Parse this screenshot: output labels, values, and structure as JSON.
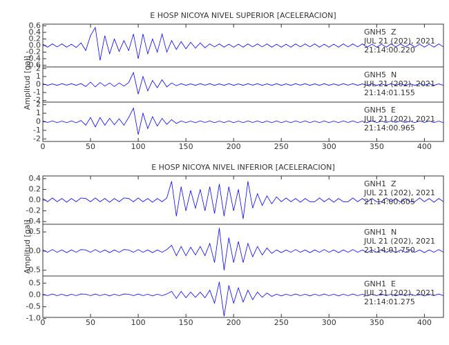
{
  "chart_data": [
    {
      "type": "line",
      "title": "E HOSP NICOYA NIVEL SUPERIOR [ACELERACION]",
      "ylabel": "Amplitud [gal]",
      "xlim": [
        0,
        420
      ],
      "xticks": [
        0,
        50,
        100,
        150,
        200,
        250,
        300,
        350,
        400
      ],
      "x": [
        0,
        5,
        10,
        15,
        20,
        25,
        30,
        35,
        40,
        45,
        50,
        55,
        60,
        65,
        70,
        75,
        80,
        85,
        90,
        95,
        100,
        105,
        110,
        115,
        120,
        125,
        130,
        135,
        140,
        145,
        150,
        155,
        160,
        165,
        170,
        175,
        180,
        185,
        190,
        195,
        200,
        205,
        210,
        215,
        220,
        225,
        230,
        235,
        240,
        245,
        250,
        255,
        260,
        265,
        270,
        275,
        280,
        285,
        290,
        295,
        300,
        305,
        310,
        315,
        320,
        325,
        330,
        335,
        340,
        345,
        350,
        355,
        360,
        365,
        370,
        375,
        380,
        385,
        390,
        395,
        400,
        405,
        410,
        415,
        420
      ],
      "series": [
        {
          "name": "GNH5  Z",
          "date": "JUL 21 (202), 2021",
          "time": "21:14:00.220",
          "color": "#0000ff",
          "ylim": [
            -0.65,
            0.65
          ],
          "yticks": [
            0.6,
            0.4,
            0.2,
            {
              "value": 0,
              "label": "0.0"
            },
            -0.2,
            -0.4,
            -0.6
          ],
          "values": [
            0.04,
            -0.05,
            0.05,
            -0.04,
            0.05,
            -0.05,
            0.04,
            -0.06,
            0.08,
            -0.15,
            0.3,
            0.55,
            -0.45,
            0.3,
            -0.25,
            0.2,
            -0.18,
            0.15,
            -0.15,
            0.35,
            -0.4,
            0.35,
            -0.25,
            0.2,
            -0.2,
            0.35,
            -0.2,
            0.15,
            -0.12,
            0.12,
            -0.1,
            0.1,
            -0.08,
            0.08,
            -0.07,
            0.05,
            -0.04,
            0.05,
            -0.05,
            0.04,
            -0.05,
            0.04,
            -0.05,
            0.05,
            -0.04,
            0.05,
            -0.04,
            0.05,
            -0.05,
            0.04,
            -0.05,
            0.04,
            -0.05,
            0.05,
            -0.04,
            0.05,
            -0.04,
            0.05,
            -0.05,
            0.04,
            -0.05,
            0.04,
            -0.05,
            0.05,
            -0.04,
            0.05,
            -0.04,
            0.05,
            -0.05,
            0.04,
            -0.05,
            0.04,
            -0.05,
            0.05,
            -0.04,
            0.05,
            -0.04,
            0.05,
            -0.05,
            0.04,
            -0.05,
            0.04,
            -0.05,
            0.05,
            -0.04
          ]
        },
        {
          "name": "GNH5  N",
          "date": "JUL 21 (202), 2021",
          "time": "21:14:01.155",
          "color": "#0000ff",
          "ylim": [
            -2.2,
            2.2
          ],
          "yticks": [
            2,
            1,
            0,
            -1,
            -2
          ],
          "values": [
            0.1,
            -0.1,
            0.08,
            -0.1,
            0.1,
            -0.08,
            0.1,
            -0.1,
            0.12,
            -0.25,
            0.3,
            -0.3,
            0.25,
            -0.2,
            0.2,
            -0.25,
            0.2,
            -0.2,
            0.25,
            1.5,
            -1.2,
            1.0,
            -0.8,
            0.5,
            -0.4,
            0.6,
            -0.3,
            0.2,
            -0.15,
            0.1,
            -0.1,
            0.08,
            -0.1,
            0.1,
            -0.08,
            0.1,
            -0.1,
            0.08,
            -0.1,
            0.1,
            -0.1,
            0.08,
            -0.1,
            0.1,
            -0.08,
            0.1,
            -0.1,
            0.08,
            -0.1,
            0.1,
            -0.1,
            0.08,
            -0.1,
            0.1,
            -0.08,
            0.1,
            -0.1,
            0.08,
            -0.1,
            0.1,
            -0.1,
            0.08,
            -0.1,
            0.1,
            -0.08,
            0.1,
            -0.1,
            0.08,
            -0.1,
            0.1,
            -0.1,
            0.08,
            -0.1,
            0.1,
            -0.08,
            0.1,
            -0.1,
            0.08,
            -0.1,
            0.1,
            -0.08,
            0.1,
            -0.1,
            0.08,
            -0.1
          ]
        },
        {
          "name": "GNH5  E",
          "date": "JUL 21 (202), 2021",
          "time": "21:14:00.965",
          "color": "#0000ff",
          "ylim": [
            -2.3,
            2.3
          ],
          "yticks": [
            2,
            1,
            0,
            -1,
            -2
          ],
          "values": [
            0.1,
            -0.08,
            0.1,
            -0.1,
            0.08,
            -0.1,
            0.1,
            -0.12,
            0.15,
            -0.4,
            0.5,
            -0.6,
            0.5,
            -0.4,
            0.4,
            -0.35,
            0.35,
            -0.4,
            0.5,
            1.6,
            -1.5,
            1.0,
            -0.8,
            0.6,
            -0.5,
            0.4,
            -0.3,
            0.25,
            -0.2,
            0.1,
            -0.1,
            0.08,
            -0.1,
            0.1,
            -0.08,
            0.1,
            -0.1,
            0.08,
            -0.1,
            0.1,
            -0.1,
            0.08,
            -0.1,
            0.1,
            -0.08,
            0.1,
            -0.1,
            0.08,
            -0.1,
            0.1,
            -0.1,
            0.08,
            -0.1,
            0.1,
            -0.08,
            0.1,
            -0.1,
            0.08,
            -0.1,
            0.1,
            -0.1,
            0.08,
            -0.1,
            0.1,
            -0.08,
            0.1,
            -0.1,
            0.08,
            -0.1,
            0.1,
            -0.1,
            0.08,
            -0.1,
            0.1,
            -0.08,
            0.1,
            -0.1,
            0.08,
            -0.1,
            0.1,
            -0.08,
            0.1,
            -0.1,
            0.08,
            -0.1
          ]
        }
      ]
    },
    {
      "type": "line",
      "title": "E HOSP NICOYA NIVEL INFERIOR [ACELERACION]",
      "ylabel": "Amplitud [gal]",
      "xlim": [
        0,
        420
      ],
      "xticks": [
        0,
        50,
        100,
        150,
        200,
        250,
        300,
        350,
        400
      ],
      "x": [
        0,
        5,
        10,
        15,
        20,
        25,
        30,
        35,
        40,
        45,
        50,
        55,
        60,
        65,
        70,
        75,
        80,
        85,
        90,
        95,
        100,
        105,
        110,
        115,
        120,
        125,
        130,
        135,
        140,
        145,
        150,
        155,
        160,
        165,
        170,
        175,
        180,
        185,
        190,
        195,
        200,
        205,
        210,
        215,
        220,
        225,
        230,
        235,
        240,
        245,
        250,
        255,
        260,
        265,
        270,
        275,
        280,
        285,
        290,
        295,
        300,
        305,
        310,
        315,
        320,
        325,
        330,
        335,
        340,
        345,
        350,
        355,
        360,
        365,
        370,
        375,
        380,
        385,
        390,
        395,
        400,
        405,
        410,
        415,
        420
      ],
      "series": [
        {
          "name": "GNH1  Z",
          "date": "JUL 21 (202), 2021",
          "time": "21:14:00.605",
          "color": "#0000ff",
          "ylim": [
            -0.45,
            0.45
          ],
          "yticks": [
            0.4,
            0.2,
            {
              "value": 0,
              "label": "0.0"
            },
            -0.2,
            -0.4
          ],
          "values": [
            0.03,
            -0.03,
            0.04,
            -0.03,
            0.03,
            -0.04,
            0.03,
            -0.03,
            0.04,
            0.03,
            -0.03,
            0.04,
            -0.03,
            0.03,
            -0.04,
            0.03,
            -0.03,
            0.04,
            0.03,
            -0.03,
            0.04,
            -0.03,
            0.03,
            -0.04,
            0.03,
            -0.03,
            0.04,
            0.35,
            -0.3,
            0.25,
            -0.2,
            0.18,
            -0.15,
            0.2,
            -0.2,
            0.25,
            -0.25,
            0.3,
            -0.3,
            0.25,
            -0.2,
            0.2,
            -0.35,
            0.35,
            -0.15,
            0.12,
            -0.1,
            0.08,
            -0.07,
            0.06,
            -0.03,
            0.04,
            -0.03,
            0.03,
            -0.04,
            0.03,
            -0.03,
            -0.03,
            0.04,
            -0.03,
            0.03,
            -0.04,
            0.03,
            -0.03,
            -0.03,
            0.04,
            -0.03,
            0.03,
            -0.04,
            0.03,
            -0.03,
            -0.03,
            0.04,
            -0.03,
            0.03,
            -0.04,
            0.03,
            -0.03,
            -0.03,
            0.04,
            -0.03,
            0.03,
            -0.04,
            0.03,
            -0.03
          ]
        },
        {
          "name": "GNH1  N",
          "date": "JUL 21 (202), 2021",
          "time": "21:14:01.750",
          "color": "#0000ff",
          "ylim": [
            -0.65,
            0.7
          ],
          "yticks": [
            0.5,
            {
              "value": 0,
              "label": "0.0"
            },
            -0.5
          ],
          "values": [
            0.03,
            -0.03,
            0.04,
            -0.03,
            0.03,
            -0.04,
            0.03,
            -0.03,
            0.04,
            0.03,
            -0.03,
            0.04,
            -0.03,
            0.03,
            -0.04,
            0.03,
            -0.03,
            0.04,
            0.03,
            -0.03,
            0.04,
            -0.03,
            0.03,
            -0.04,
            0.03,
            -0.03,
            0.04,
            0.15,
            -0.12,
            0.12,
            -0.12,
            0.1,
            -0.1,
            0.12,
            -0.12,
            0.2,
            -0.3,
            0.6,
            -0.5,
            0.35,
            -0.3,
            0.25,
            -0.3,
            0.2,
            -0.15,
            0.12,
            -0.1,
            0.08,
            -0.06,
            0.03,
            -0.04,
            0.03,
            -0.03,
            0.04,
            -0.03,
            0.03,
            -0.04,
            0.03,
            -0.03,
            0.04,
            -0.03,
            0.03,
            -0.04,
            0.03,
            -0.03,
            0.04,
            -0.03,
            0.03,
            -0.04,
            0.03,
            -0.03,
            0.04,
            -0.03,
            0.03,
            -0.04,
            0.03,
            -0.03,
            0.04,
            -0.03,
            0.03,
            -0.04,
            0.03,
            -0.03,
            0.04,
            -0.03
          ]
        },
        {
          "name": "GNH1  E",
          "date": "JUL 21 (202), 2021",
          "time": "21:14:01.275",
          "color": "#0000ff",
          "ylim": [
            -0.95,
            0.8
          ],
          "yticks": [
            0.5,
            {
              "value": 0,
              "label": "0.0"
            },
            -0.5,
            {
              "value": -1,
              "label": "-1.0"
            }
          ],
          "values": [
            0.03,
            -0.03,
            0.04,
            -0.03,
            0.03,
            -0.04,
            0.03,
            -0.03,
            0.04,
            0.03,
            -0.03,
            0.04,
            -0.03,
            0.03,
            -0.04,
            0.03,
            -0.03,
            0.04,
            0.03,
            -0.03,
            0.04,
            -0.03,
            0.03,
            -0.04,
            0.03,
            -0.03,
            0.04,
            0.15,
            -0.15,
            0.15,
            -0.12,
            0.12,
            -0.1,
            0.12,
            -0.12,
            0.2,
            -0.35,
            0.55,
            -0.9,
            0.4,
            -0.35,
            0.3,
            -0.3,
            0.2,
            -0.2,
            0.12,
            -0.1,
            0.08,
            -0.06,
            0.03,
            -0.04,
            0.03,
            -0.03,
            0.04,
            -0.03,
            0.03,
            -0.04,
            0.03,
            -0.03,
            0.04,
            -0.03,
            0.03,
            -0.04,
            0.03,
            -0.03,
            0.04,
            -0.03,
            0.03,
            -0.04,
            0.03,
            -0.03,
            0.04,
            -0.03,
            0.03,
            -0.04,
            0.03,
            -0.03,
            0.04,
            -0.03,
            0.03,
            -0.04,
            0.03,
            -0.03,
            0.04,
            -0.03
          ]
        }
      ]
    }
  ]
}
